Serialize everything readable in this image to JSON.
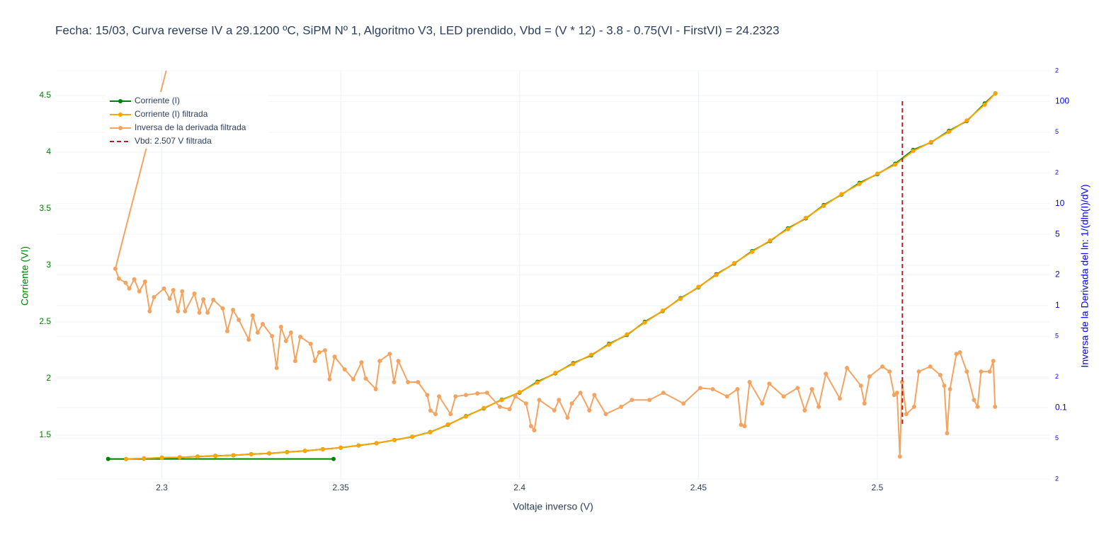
{
  "chart_data": {
    "type": "line",
    "title": "Fecha: 15/03, Curva reverse IV a 29.1200 ºC, SiPM Nº 1, Algoritmo V3, LED prendido,  Vbd = (V * 12) - 3.8 - 0.75(VI - FirstVI) = 24.2323",
    "x_label": "Voltaje inverso (V)",
    "y_label": "Corriente (VI)",
    "y2_label": "Inversa de la Derivada del ln: 1/(dln(I)/dV)",
    "xlim": [
      2.2706,
      2.5481
    ],
    "xticks": [
      2.3,
      2.35,
      2.4,
      2.45,
      2.5
    ],
    "ylim": [
      1.1125,
      4.719
    ],
    "yticks": [
      1.5,
      2,
      2.5,
      3,
      3.5,
      4,
      4.5
    ],
    "y_color": "green",
    "y2lim": [
      0.02,
      200
    ],
    "y2_log": true,
    "y2_color": "blue",
    "y2ticks": [
      {
        "value": 200,
        "label": "2"
      },
      100,
      {
        "value": 50,
        "label": "5"
      },
      {
        "value": 20,
        "label": "2"
      },
      10,
      5,
      2,
      1,
      {
        "value": 0.5,
        "label": "5"
      },
      {
        "value": 0.2,
        "label": "2"
      },
      0.1,
      {
        "value": 0.05,
        "label": "5"
      },
      {
        "value": 0.02,
        "label": "2"
      }
    ],
    "grid": true,
    "legend": "upper left",
    "series": [
      {
        "name": "Corriente (I)",
        "color": "green",
        "mode": "lines+markers",
        "x": [
          2.348,
          2.285,
          2.29,
          2.295,
          2.3,
          2.305,
          2.31,
          2.315,
          2.32,
          2.325,
          2.33,
          2.335,
          2.34,
          2.345,
          2.35,
          2.355,
          2.36,
          2.365,
          2.37,
          2.375,
          2.38,
          2.385,
          2.39,
          2.395,
          2.4,
          2.405,
          2.41,
          2.415,
          2.42,
          2.425,
          2.43,
          2.435,
          2.44,
          2.445,
          2.45,
          2.455,
          2.46,
          2.465,
          2.47,
          2.475,
          2.48,
          2.485,
          2.49,
          2.495,
          2.5,
          2.505,
          2.51,
          2.515,
          2.52,
          2.525,
          2.53,
          2.533
        ],
        "values": [
          1.29,
          1.29,
          1.289,
          1.294,
          1.301,
          1.304,
          1.311,
          1.317,
          1.322,
          1.332,
          1.339,
          1.351,
          1.361,
          1.376,
          1.389,
          1.409,
          1.429,
          1.457,
          1.486,
          1.527,
          1.592,
          1.668,
          1.737,
          1.813,
          1.876,
          1.972,
          2.046,
          2.136,
          2.205,
          2.306,
          2.385,
          2.501,
          2.596,
          2.71,
          2.806,
          2.921,
          3.016,
          3.126,
          3.215,
          3.327,
          3.415,
          3.532,
          3.626,
          3.728,
          3.806,
          3.898,
          4.02,
          4.086,
          4.188,
          4.275,
          4.43,
          4.52
        ]
      },
      {
        "name": "Corriente (I) filtrada",
        "color": "orange",
        "mode": "lines+markers",
        "x": [
          2.29,
          2.295,
          2.3,
          2.305,
          2.31,
          2.315,
          2.32,
          2.325,
          2.33,
          2.335,
          2.34,
          2.345,
          2.35,
          2.355,
          2.36,
          2.365,
          2.37,
          2.375,
          2.38,
          2.385,
          2.39,
          2.395,
          2.4,
          2.405,
          2.41,
          2.415,
          2.42,
          2.425,
          2.43,
          2.435,
          2.44,
          2.445,
          2.45,
          2.455,
          2.46,
          2.465,
          2.47,
          2.475,
          2.48,
          2.485,
          2.49,
          2.495,
          2.5,
          2.505,
          2.51,
          2.515,
          2.52,
          2.525,
          2.53,
          2.533
        ],
        "values": [
          1.29,
          1.295,
          1.3,
          1.305,
          1.31,
          1.316,
          1.323,
          1.331,
          1.34,
          1.35,
          1.362,
          1.375,
          1.39,
          1.408,
          1.43,
          1.456,
          1.487,
          1.525,
          1.595,
          1.665,
          1.74,
          1.81,
          1.88,
          1.965,
          2.05,
          2.13,
          2.21,
          2.3,
          2.39,
          2.495,
          2.6,
          2.705,
          2.81,
          2.915,
          3.02,
          3.12,
          3.22,
          3.32,
          3.42,
          3.525,
          3.63,
          3.72,
          3.81,
          3.89,
          4.01,
          4.09,
          4.18,
          4.28,
          4.42,
          4.52
        ]
      },
      {
        "name": "Inversa de la derivada filtrada",
        "color": "#f4a460",
        "mode": "lines+markers",
        "axis": "y2",
        "x": [
          2.303,
          2.287,
          2.288,
          2.2899,
          2.2909,
          2.2923,
          2.2937,
          2.2953,
          2.2966,
          2.2978,
          2.3006,
          2.3022,
          2.3032,
          2.3045,
          2.3057,
          2.3065,
          2.3091,
          2.3105,
          2.3116,
          2.3128,
          2.3144,
          2.317,
          2.3183,
          2.3199,
          2.3215,
          2.3243,
          2.3254,
          2.3268,
          2.3282,
          2.3308,
          2.3321,
          2.3333,
          2.3347,
          2.3361,
          2.3373,
          2.3387,
          2.3416,
          2.3428,
          2.344,
          2.3456,
          2.3469,
          2.3483,
          2.3511,
          2.3535,
          2.3558,
          2.357,
          2.3598,
          2.3609,
          2.3637,
          2.3649,
          2.3661,
          2.3688,
          2.3716,
          2.3742,
          2.3751,
          2.3765,
          2.3775,
          2.3807,
          2.3821,
          2.385,
          2.3882,
          2.3909,
          2.3945,
          2.3972,
          2.3988,
          2.4018,
          2.4032,
          2.4041,
          2.4055,
          2.4097,
          2.411,
          2.4134,
          2.4146,
          2.417,
          2.4195,
          2.4209,
          2.4241,
          2.4284,
          2.4314,
          2.4363,
          2.4402,
          2.4458,
          2.4505,
          2.454,
          2.458,
          2.4609,
          2.4619,
          2.4629,
          2.4643,
          2.4678,
          2.4698,
          2.4738,
          2.4777,
          2.4797,
          2.4817,
          2.4836,
          2.4856,
          2.4895,
          2.4915,
          2.4954,
          2.4964,
          2.4978,
          2.5014,
          2.5034,
          2.5047,
          2.5055,
          2.5063,
          2.5069,
          2.5081,
          2.5103,
          2.5116,
          2.5148,
          2.5176,
          2.5187,
          2.5195,
          2.5203,
          2.5221,
          2.5231,
          2.525,
          2.527,
          2.528,
          2.529,
          2.5314,
          2.5324,
          2.5329
        ],
        "values": [
          350,
          2.3,
          1.84,
          1.67,
          1.47,
          1.81,
          1.38,
          1.72,
          0.88,
          1.21,
          1.47,
          1.17,
          1.42,
          0.88,
          1.38,
          0.88,
          1.31,
          0.853,
          1.15,
          0.853,
          1.14,
          0.938,
          0.562,
          0.908,
          0.726,
          0.464,
          0.8,
          0.545,
          0.66,
          0.503,
          0.245,
          0.619,
          0.45,
          0.545,
          0.287,
          0.495,
          0.422,
          0.287,
          0.348,
          0.365,
          0.19,
          0.316,
          0.237,
          0.19,
          0.278,
          0.193,
          0.152,
          0.287,
          0.337,
          0.178,
          0.287,
          0.178,
          0.178,
          0.133,
          0.0938,
          0.0866,
          0.129,
          0.0866,
          0.129,
          0.133,
          0.138,
          0.14,
          0.102,
          0.0968,
          0.129,
          0.11,
          0.066,
          0.06,
          0.119,
          0.094,
          0.119,
          0.08,
          0.11,
          0.14,
          0.094,
          0.133,
          0.0866,
          0.102,
          0.119,
          0.119,
          0.14,
          0.11,
          0.156,
          0.152,
          0.129,
          0.152,
          0.068,
          0.066,
          0.178,
          0.11,
          0.172,
          0.129,
          0.156,
          0.094,
          0.152,
          0.102,
          0.215,
          0.123,
          0.245,
          0.164,
          0.11,
          0.202,
          0.253,
          0.226,
          0.133,
          0.14,
          0.0332,
          0.178,
          0.0866,
          0.102,
          0.226,
          0.253,
          0.209,
          0.164,
          0.0562,
          0.152,
          0.337,
          0.348,
          0.226,
          0.119,
          0.102,
          0.226,
          0.226,
          0.287,
          0.102
        ]
      },
      {
        "name": "Vbd: 2.507 V filtrada",
        "color": "#b22222",
        "mode": "lines",
        "dash": true,
        "x": [
          2.507,
          2.507
        ],
        "values": [
          1.6,
          4.47
        ]
      }
    ]
  }
}
